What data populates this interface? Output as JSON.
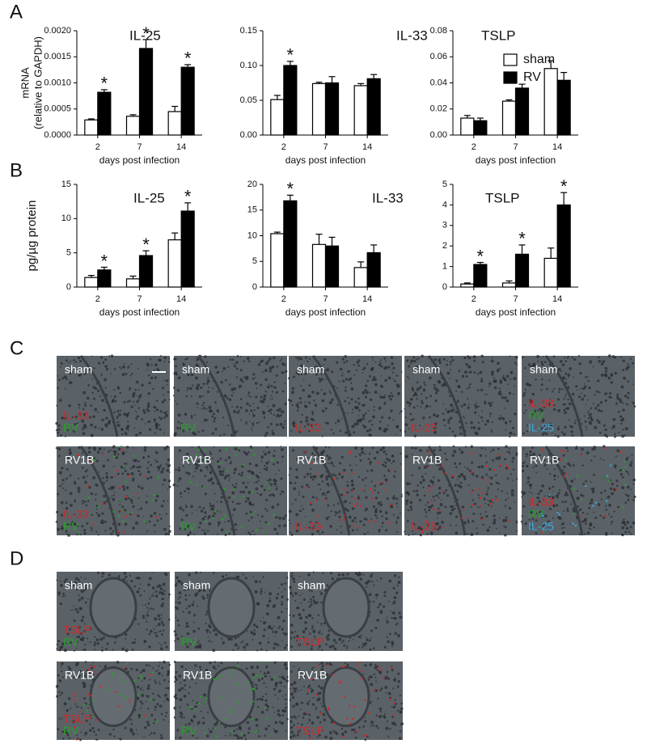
{
  "panel_labels": [
    "A",
    "B",
    "C",
    "D"
  ],
  "chart_data": [
    {
      "type": "bar",
      "title": "IL-25",
      "ylabel": [
        "mRNA",
        "(relative to GAPDH)"
      ],
      "xlabel": "days post infection",
      "categories": [
        "2",
        "7",
        "14"
      ],
      "ylim": [
        0,
        0.002
      ],
      "yticks": [
        {
          "value": 0,
          "label": "0.0000"
        },
        {
          "value": 0.0005,
          "label": "0.0005"
        },
        {
          "value": 0.001,
          "label": "0.0010"
        },
        {
          "value": 0.0015,
          "label": "0.0015"
        },
        {
          "value": 0.002,
          "label": "0.0020"
        }
      ],
      "series": [
        {
          "color": "#ffffff",
          "values": [
            0.00029,
            0.00036,
            0.00045
          ],
          "errors": [
            2e-05,
            3e-05,
            0.0001
          ]
        },
        {
          "color": "#000000",
          "values": [
            0.00082,
            0.00166,
            0.0013
          ],
          "errors": [
            5e-05,
            0.00017,
            5e-05
          ],
          "significance": [
            "*",
            "*",
            "*"
          ]
        }
      ]
    },
    {
      "type": "bar",
      "title": "IL-33",
      "xlabel": "days post infection",
      "categories": [
        "2",
        "7",
        "14"
      ],
      "ylim": [
        0,
        0.15
      ],
      "yticks": [
        {
          "value": 0,
          "label": "0.00"
        },
        {
          "value": 0.05,
          "label": "0.05"
        },
        {
          "value": 0.1,
          "label": "0.10"
        },
        {
          "value": 0.15,
          "label": "0.15"
        }
      ],
      "series": [
        {
          "color": "#ffffff",
          "values": [
            0.051,
            0.074,
            0.071
          ],
          "errors": [
            0.006,
            0.002,
            0.003
          ]
        },
        {
          "color": "#000000",
          "values": [
            0.1,
            0.075,
            0.081
          ],
          "errors": [
            0.006,
            0.009,
            0.006
          ],
          "significance": [
            "*",
            null,
            null
          ]
        }
      ]
    },
    {
      "type": "bar",
      "title": "TSLP",
      "xlabel": "days post infection",
      "legend": "upper right",
      "categories": [
        "2",
        "7",
        "14"
      ],
      "ylim": [
        0,
        0.08
      ],
      "yticks": [
        {
          "value": 0,
          "label": "0.00"
        },
        {
          "value": 0.02,
          "label": "0.02"
        },
        {
          "value": 0.04,
          "label": "0.04"
        },
        {
          "value": 0.06,
          "label": "0.06"
        },
        {
          "value": 0.08,
          "label": "0.08"
        }
      ],
      "series": [
        {
          "name": "sham",
          "color": "#ffffff",
          "values": [
            0.013,
            0.026,
            0.051
          ],
          "errors": [
            0.002,
            0.001,
            0.006
          ]
        },
        {
          "name": "RV",
          "color": "#000000",
          "values": [
            0.011,
            0.036,
            0.042
          ],
          "errors": [
            0.002,
            0.003,
            0.006
          ]
        }
      ]
    },
    {
      "type": "bar",
      "title": "IL-25",
      "ylabel": [
        "pg/µg protein"
      ],
      "xlabel": "days post infection",
      "categories": [
        "2",
        "7",
        "14"
      ],
      "ylim": [
        0,
        15
      ],
      "yticks": [
        0,
        5,
        10,
        15
      ],
      "series": [
        {
          "color": "#ffffff",
          "values": [
            1.4,
            1.2,
            6.9
          ],
          "errors": [
            0.3,
            0.4,
            1.0
          ]
        },
        {
          "color": "#000000",
          "values": [
            2.5,
            4.6,
            11.1
          ],
          "errors": [
            0.4,
            0.7,
            1.2
          ],
          "significance": [
            "*",
            "*",
            "*"
          ]
        }
      ]
    },
    {
      "type": "bar",
      "title": "IL-33",
      "xlabel": "days post infection",
      "categories": [
        "2",
        "7",
        "14"
      ],
      "ylim": [
        0,
        20
      ],
      "yticks": [
        0,
        5,
        10,
        15,
        20
      ],
      "series": [
        {
          "color": "#ffffff",
          "values": [
            10.4,
            8.3,
            3.8
          ],
          "errors": [
            0.3,
            2.0,
            1.1
          ]
        },
        {
          "color": "#000000",
          "values": [
            16.8,
            8.0,
            6.7
          ],
          "errors": [
            1.1,
            1.7,
            1.5
          ],
          "significance": [
            "*",
            null,
            null
          ]
        }
      ]
    },
    {
      "type": "bar",
      "title": "TSLP",
      "xlabel": "days post infection",
      "categories": [
        "2",
        "7",
        "14"
      ],
      "ylim": [
        0,
        5
      ],
      "yticks": [
        0,
        1,
        2,
        3,
        4,
        5
      ],
      "series": [
        {
          "color": "#ffffff",
          "values": [
            0.15,
            0.2,
            1.4
          ],
          "errors": [
            0.05,
            0.1,
            0.5
          ]
        },
        {
          "color": "#000000",
          "values": [
            1.1,
            1.6,
            4.0
          ],
          "errors": [
            0.1,
            0.45,
            0.6
          ],
          "significance": [
            "*",
            "*",
            "*"
          ]
        }
      ]
    }
  ],
  "micrographs": {
    "C": [
      [
        {
          "top": "sham",
          "channels": [
            {
              "text": "IL-33",
              "color": "#d02828"
            },
            {
              "text": "RV",
              "color": "#28a028"
            }
          ]
        },
        {
          "top": "sham",
          "channels": [
            {
              "text": "RV",
              "color": "#28a028"
            }
          ]
        },
        {
          "top": "sham",
          "channels": [
            {
              "text": "IL-33",
              "color": "#d02828"
            }
          ]
        },
        {
          "top": "sham",
          "channels": [
            {
              "text": "IL-25",
              "color": "#d02828"
            }
          ]
        },
        {
          "top": "sham",
          "channels": [
            {
              "text": "IL-33",
              "color": "#d02828"
            },
            {
              "text": "RV",
              "color": "#28a028"
            },
            {
              "text": "IL-25",
              "color": "#40a8d8"
            }
          ]
        }
      ],
      [
        {
          "top": "RV1B",
          "channels": [
            {
              "text": "IL-33",
              "color": "#d02828"
            },
            {
              "text": "RV",
              "color": "#28a028"
            }
          ]
        },
        {
          "top": "RV1B",
          "channels": [
            {
              "text": "RV",
              "color": "#28a028"
            }
          ]
        },
        {
          "top": "RV1B",
          "channels": [
            {
              "text": "IL-33",
              "color": "#d02828"
            }
          ]
        },
        {
          "top": "RV1B",
          "channels": [
            {
              "text": "IL-25",
              "color": "#d02828"
            }
          ]
        },
        {
          "top": "RV1B",
          "channels": [
            {
              "text": "IL-33",
              "color": "#d02828"
            },
            {
              "text": "RV",
              "color": "#28a028"
            },
            {
              "text": "IL-25",
              "color": "#40a8d8"
            }
          ]
        }
      ]
    ],
    "D": [
      [
        {
          "top": "sham",
          "channels": [
            {
              "text": "TSLP",
              "color": "#d02828"
            },
            {
              "text": "RV",
              "color": "#28a028"
            }
          ]
        },
        {
          "top": "sham",
          "channels": [
            {
              "text": "RV",
              "color": "#28a028"
            }
          ]
        },
        {
          "top": "sham",
          "channels": [
            {
              "text": "TSLP",
              "color": "#d02828"
            }
          ]
        }
      ],
      [
        {
          "top": "RV1B",
          "channels": [
            {
              "text": "TSLP",
              "color": "#d02828"
            },
            {
              "text": "RV",
              "color": "#28a028"
            }
          ]
        },
        {
          "top": "RV1B",
          "channels": [
            {
              "text": "RV",
              "color": "#28a028"
            }
          ]
        },
        {
          "top": "RV1B",
          "channels": [
            {
              "text": "TSLP",
              "color": "#d02828"
            }
          ]
        }
      ]
    ]
  }
}
